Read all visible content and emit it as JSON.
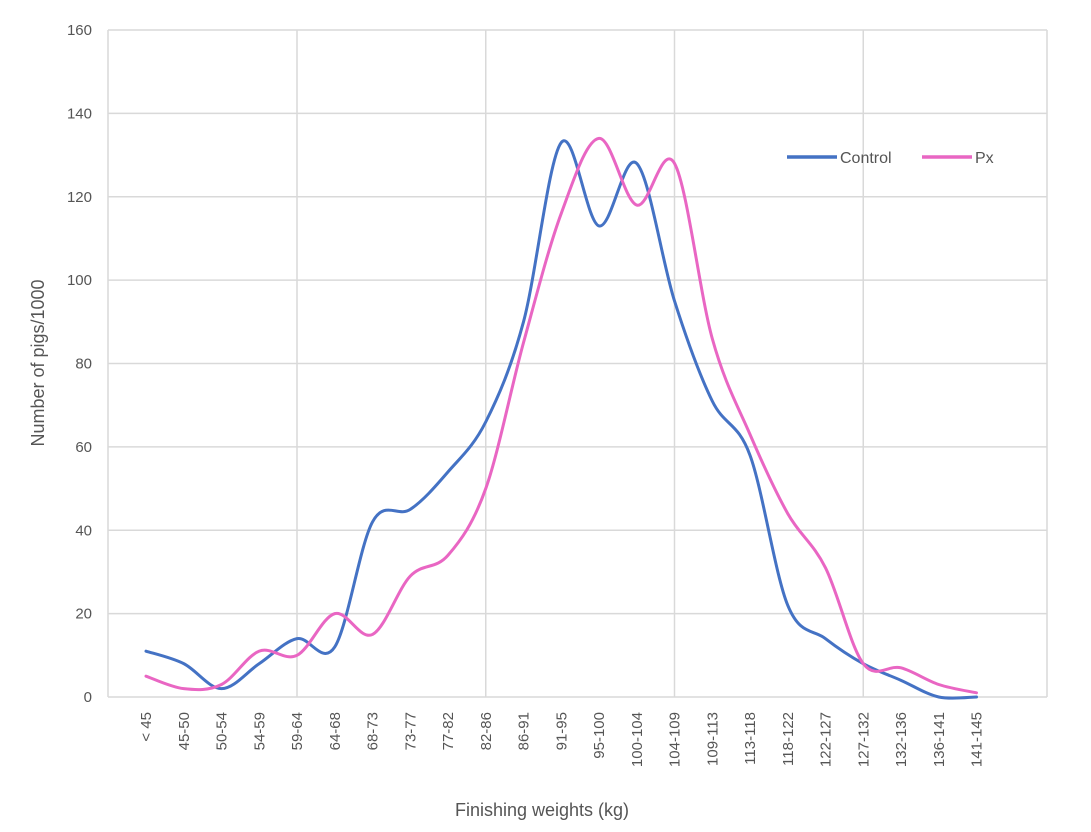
{
  "chart_data": {
    "type": "line",
    "xlabel": "Finishing weights (kg)",
    "ylabel": "Number of pigs/1000",
    "ylim": [
      0,
      160
    ],
    "yticks": [
      0,
      20,
      40,
      60,
      80,
      100,
      120,
      140,
      160
    ],
    "grid": true,
    "smooth": true,
    "legend_position": "top-right",
    "categories": [
      "< 45",
      "45-50",
      "50-54",
      "54-59",
      "59-64",
      "64-68",
      "68-73",
      "73-77",
      "77-82",
      "82-86",
      "86-91",
      "91-95",
      "95-100",
      "100-104",
      "104-109",
      "109-113",
      "113-118",
      "118-122",
      "122-127",
      "127-132",
      "132-136",
      "136-141",
      "141-145"
    ],
    "series": [
      {
        "name": "Control",
        "color": "#4472c4",
        "values": [
          11,
          8,
          2,
          8,
          14,
          12,
          42,
          45,
          54,
          66,
          90,
          133,
          113,
          128,
          95,
          71,
          58,
          22,
          14,
          8,
          4,
          0,
          0
        ]
      },
      {
        "name": "Px",
        "color": "#e966c3",
        "values": [
          5,
          2,
          3,
          11,
          10,
          20,
          15,
          29,
          34,
          50,
          85,
          116,
          134,
          118,
          128,
          86,
          63,
          44,
          31,
          8,
          7,
          3,
          1
        ]
      }
    ]
  }
}
